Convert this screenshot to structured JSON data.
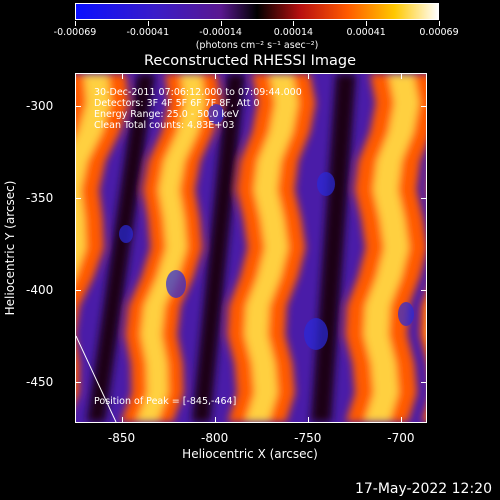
{
  "colorbar": {
    "tick_labels": [
      "-0.00069",
      "-0.00041",
      "-0.00014",
      "0.00014",
      "0.00041",
      "0.00069"
    ],
    "units": "(photons cm⁻² s⁻¹ asec⁻²)"
  },
  "title": "Reconstructed RHESSI Image",
  "info": {
    "time_range": "30-Dec-2011 07:06:12.000 to 07:09:44.000",
    "detectors": "Detectors: 3F 4F 5F 6F 7F 8F, Att 0",
    "energy_range": "Energy Range: 25.0 - 50.0 keV",
    "algorithm": "Clean     Total counts: 4.83E+03"
  },
  "peak_label": "Position of Peak = [-845,-464]",
  "axes": {
    "x_title": "Heliocentric X (arcsec)",
    "y_title": "Heliocentric Y (arcsec)",
    "x_ticks": [
      "-850",
      "-800",
      "-750",
      "-700"
    ],
    "y_ticks": [
      "-300",
      "-350",
      "-400",
      "-450"
    ]
  },
  "chart_data": {
    "type": "heatmap",
    "title": "Reconstructed RHESSI Image",
    "xlabel": "Heliocentric X (arcsec)",
    "ylabel": "Heliocentric Y (arcsec)",
    "xlim": [
      -875,
      -686
    ],
    "ylim": [
      -472,
      -282
    ],
    "peak": [
      -845,
      -464
    ],
    "colorbar_range": [
      -0.00069,
      0.00069
    ],
    "colormap": "blue-purple-red-yellow-white"
  },
  "timestamp": "17-May-2022 12:20"
}
